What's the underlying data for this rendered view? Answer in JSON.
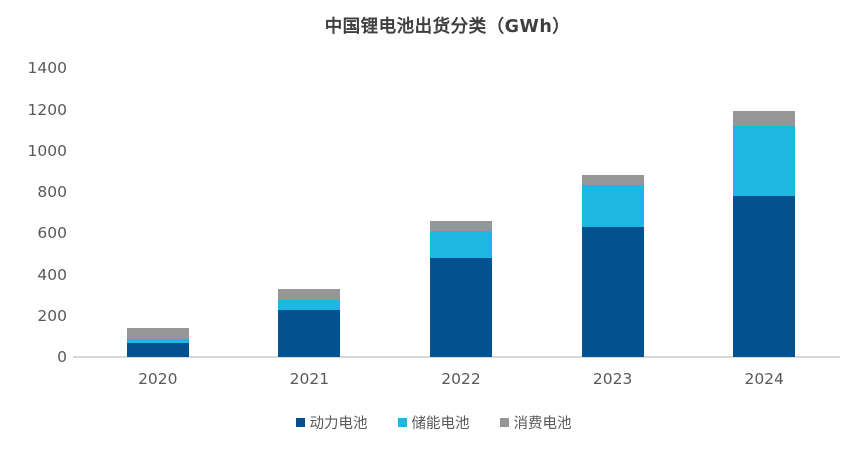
{
  "chart_data": {
    "type": "bar",
    "stacked": true,
    "title": "中国锂电池出货分类（GWh）",
    "categories": [
      "2020",
      "2021",
      "2022",
      "2023",
      "2024"
    ],
    "series": [
      {
        "key": "power",
        "name": "动力电池",
        "color": "#03518F",
        "values": [
          70,
          230,
          480,
          630,
          780
        ]
      },
      {
        "key": "storage",
        "name": "储能电池",
        "color": "#1EB6E2",
        "values": [
          20,
          45,
          130,
          205,
          340
        ]
      },
      {
        "key": "consumer",
        "name": "消费电池",
        "color": "#969696",
        "values": [
          50,
          55,
          50,
          50,
          75
        ]
      }
    ],
    "totals": [
      140,
      330,
      660,
      885,
      1195
    ],
    "xlabel": "",
    "ylabel": "",
    "ylim": [
      0,
      1400
    ],
    "yticks": [
      0,
      200,
      400,
      600,
      800,
      1000,
      1200,
      1400
    ],
    "grid": false,
    "legend_position": "bottom"
  },
  "colors": {
    "background": "#FFFFFF",
    "axis_line": "#D9D9D9",
    "tick_text": "#595959",
    "title_text": "#3F3F3F"
  }
}
